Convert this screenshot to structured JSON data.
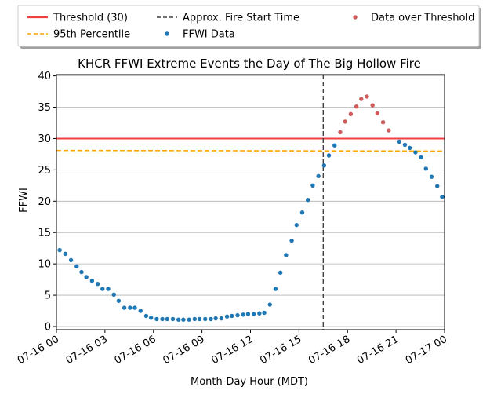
{
  "chart_data": {
    "type": "scatter",
    "title": "KHCR FFWI Extreme Events the Day of The Big Hollow Fire",
    "xlabel": "Month-Day Hour (MDT)",
    "ylabel": "FFWI",
    "xlim_hours": [
      0,
      24
    ],
    "ylim": [
      -0.5,
      40.2
    ],
    "x_tick_hours": [
      0,
      3,
      6,
      9,
      12,
      15,
      18,
      21,
      24
    ],
    "x_tick_labels": [
      "07-16 00",
      "07-16 03",
      "07-16 06",
      "07-16 09",
      "07-16 12",
      "07-16 15",
      "07-16 18",
      "07-16 21",
      "07-17 00"
    ],
    "y_tick_values": [
      0,
      5,
      10,
      15,
      20,
      25,
      30,
      35,
      40
    ],
    "y_tick_labels": [
      "0",
      "5",
      "10",
      "15",
      "20",
      "25",
      "30",
      "35",
      "40"
    ],
    "grid": "horizontal",
    "legend": {
      "placement": "top-center-outside",
      "entries": [
        {
          "label": "Threshold (30)",
          "kind": "line",
          "color": "#f04040"
        },
        {
          "label": "Approx. Fire Start Time",
          "kind": "dash",
          "color": "#404040"
        },
        {
          "label": "Data over Threshold",
          "kind": "dot",
          "color": "#cd5c5c"
        },
        {
          "label": "95th Percentile",
          "kind": "dash",
          "color": "#ffa500"
        },
        {
          "label": "FFWI Data",
          "kind": "dot",
          "color": "#1f77b4"
        }
      ]
    },
    "threshold": {
      "value": 30,
      "color": "#f04040"
    },
    "percentile_95": {
      "start": 28.1,
      "end": 28.0,
      "color": "#ffa500"
    },
    "fire_start_hour": 16.5,
    "series": [
      {
        "name": "FFWI Data",
        "color": "#1f77b4",
        "points": [
          [
            0.2,
            12.2
          ],
          [
            0.55,
            11.6
          ],
          [
            0.9,
            10.6
          ],
          [
            1.25,
            9.6
          ],
          [
            1.55,
            8.7
          ],
          [
            1.85,
            7.9
          ],
          [
            2.2,
            7.3
          ],
          [
            2.55,
            6.8
          ],
          [
            2.85,
            6.0
          ],
          [
            3.2,
            6.0
          ],
          [
            3.55,
            5.1
          ],
          [
            3.85,
            4.1
          ],
          [
            4.2,
            3.0
          ],
          [
            4.55,
            3.0
          ],
          [
            4.85,
            3.0
          ],
          [
            5.2,
            2.5
          ],
          [
            5.55,
            1.7
          ],
          [
            5.85,
            1.4
          ],
          [
            6.2,
            1.2
          ],
          [
            6.55,
            1.2
          ],
          [
            6.85,
            1.2
          ],
          [
            7.2,
            1.2
          ],
          [
            7.55,
            1.1
          ],
          [
            7.85,
            1.1
          ],
          [
            8.2,
            1.1
          ],
          [
            8.55,
            1.2
          ],
          [
            8.85,
            1.2
          ],
          [
            9.2,
            1.2
          ],
          [
            9.55,
            1.2
          ],
          [
            9.85,
            1.3
          ],
          [
            10.2,
            1.3
          ],
          [
            10.55,
            1.6
          ],
          [
            10.85,
            1.7
          ],
          [
            11.2,
            1.8
          ],
          [
            11.55,
            1.9
          ],
          [
            11.85,
            2.0
          ],
          [
            12.2,
            2.0
          ],
          [
            12.55,
            2.1
          ],
          [
            12.85,
            2.2
          ],
          [
            13.2,
            3.5
          ],
          [
            13.55,
            6.0
          ],
          [
            13.85,
            8.6
          ],
          [
            14.2,
            11.4
          ],
          [
            14.55,
            13.7
          ],
          [
            14.85,
            16.2
          ],
          [
            15.2,
            18.2
          ],
          [
            15.55,
            20.2
          ],
          [
            15.85,
            22.5
          ],
          [
            16.2,
            24.0
          ],
          [
            16.55,
            25.7
          ],
          [
            16.85,
            27.3
          ],
          [
            17.2,
            28.9
          ],
          [
            21.2,
            29.5
          ],
          [
            21.55,
            29.0
          ],
          [
            21.85,
            28.5
          ],
          [
            22.2,
            27.8
          ],
          [
            22.55,
            27.0
          ],
          [
            22.85,
            25.2
          ],
          [
            23.2,
            23.9
          ],
          [
            23.55,
            22.4
          ],
          [
            23.85,
            20.7
          ],
          [
            24.2,
            19.4
          ]
        ]
      },
      {
        "name": "Data over Threshold",
        "color": "#cd5c5c",
        "points": [
          [
            17.55,
            31.0
          ],
          [
            17.85,
            32.7
          ],
          [
            18.2,
            33.9
          ],
          [
            18.55,
            35.1
          ],
          [
            18.85,
            36.3
          ],
          [
            19.2,
            36.7
          ],
          [
            19.55,
            35.3
          ],
          [
            19.85,
            34.0
          ],
          [
            20.2,
            32.6
          ],
          [
            20.55,
            31.3
          ]
        ]
      }
    ]
  }
}
